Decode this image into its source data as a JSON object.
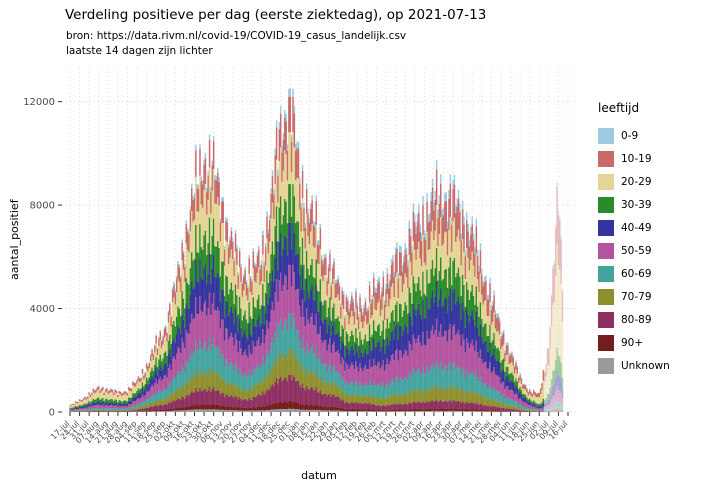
{
  "chart_data": {
    "type": "bar",
    "stacked": true,
    "title": "Verdeling positieve per dag (eerste ziektedag), op 2021-07-13",
    "subtitles": {
      "source": "bron: https://data.rivm.nl/covid-19/COVID-19_casus_landelijk.csv",
      "note": "laatste 14 dagen zijn lichter"
    },
    "xlabel": "datum",
    "ylabel": "aantal_positief",
    "ylim": [
      0,
      13300
    ],
    "yticks": [
      0,
      4000,
      8000,
      12000
    ],
    "grid": "dotted",
    "legend": {
      "title": "leeftijd",
      "position": "right"
    },
    "lighter_from_day": 347,
    "x_tick_labels": [
      "17-jul",
      "24-jul",
      "31-jul",
      "07-aug",
      "14-aug",
      "21-aug",
      "28-aug",
      "04-sep",
      "11-sep",
      "18-sep",
      "25-sep",
      "02-okt",
      "09-okt",
      "16-okt",
      "23-okt",
      "30-okt",
      "06-nov",
      "13-nov",
      "20-nov",
      "27-nov",
      "04-dec",
      "11-dec",
      "18-dec",
      "25-dec",
      "01-jan",
      "08-jan",
      "15-jan",
      "22-jan",
      "29-jan",
      "05-feb",
      "12-feb",
      "19-feb",
      "26-feb",
      "05-mrt",
      "12-mrt",
      "19-mrt",
      "26-mrt",
      "02-apr",
      "09-apr",
      "16-apr",
      "23-apr",
      "30-apr",
      "07-mei",
      "14-mei",
      "21-mei",
      "28-mei",
      "04-jun",
      "11-jun",
      "18-jun",
      "25-jun",
      "02-jul",
      "09-jul",
      "16-jul"
    ],
    "series": [
      {
        "name": "0-9",
        "color": "#9ecae1",
        "values": [
          8,
          14,
          21,
          29,
          27,
          23,
          26,
          30,
          36,
          52,
          68,
          96,
          136,
          172,
          200,
          188,
          160,
          128,
          112,
          108,
          155,
          205,
          280,
          308,
          230,
          200,
          170,
          145,
          123,
          141,
          131,
          141,
          192,
          208,
          232,
          260,
          288,
          312,
          332,
          344,
          332,
          312,
          276,
          232,
          176,
          132,
          92,
          56,
          28,
          18,
          52,
          172,
          18
        ]
      },
      {
        "name": "10-19",
        "color": "#c96a6a",
        "values": [
          30,
          54,
          84,
          114,
          108,
          90,
          102,
          132,
          180,
          260,
          340,
          480,
          680,
          860,
          1000,
          940,
          800,
          640,
          560,
          540,
          682,
          902,
          1232,
          1353,
          1012,
          880,
          748,
          638,
          539,
          550,
          513,
          550,
          672,
          728,
          812,
          910,
          1008,
          1092,
          1162,
          1204,
          1162,
          1092,
          966,
          812,
          616,
          462,
          322,
          196,
          128,
          140,
          650,
          2150,
          225
        ]
      },
      {
        "name": "20-29",
        "color": "#e4d596",
        "values": [
          75,
          135,
          210,
          285,
          270,
          225,
          255,
          264,
          324,
          468,
          612,
          864,
          1224,
          1548,
          1800,
          1692,
          1440,
          1152,
          1008,
          972,
          992,
          1312,
          1792,
          1968,
          1472,
          1280,
          1088,
          928,
          784,
          726,
          677,
          726,
          816,
          884,
          986,
          1105,
          1224,
          1326,
          1411,
          1462,
          1411,
          1326,
          1173,
          986,
          748,
          561,
          391,
          238,
          168,
          266,
          1170,
          3870,
          405
        ]
      },
      {
        "name": "30-39",
        "color": "#2a8b2a",
        "values": [
          35,
          63,
          98,
          133,
          126,
          105,
          119,
          162,
          234,
          338,
          442,
          624,
          884,
          1118,
          1300,
          1222,
          1040,
          832,
          728,
          702,
          744,
          984,
          1344,
          1476,
          1104,
          960,
          816,
          696,
          588,
          550,
          513,
          550,
          624,
          676,
          754,
          845,
          936,
          1014,
          1079,
          1118,
          1079,
          1014,
          897,
          754,
          572,
          429,
          299,
          182,
          104,
          84,
          260,
          860,
          90
        ]
      },
      {
        "name": "40-49",
        "color": "#34349e",
        "values": [
          30,
          54,
          84,
          114,
          108,
          90,
          102,
          162,
          252,
          364,
          476,
          672,
          952,
          1204,
          1400,
          1316,
          1120,
          896,
          784,
          756,
          806,
          1066,
          1456,
          1599,
          1196,
          1040,
          884,
          754,
          637,
          616,
          574,
          616,
          720,
          780,
          870,
          975,
          1080,
          1170,
          1245,
          1290,
          1245,
          1170,
          1035,
          870,
          660,
          495,
          345,
          210,
          112,
          63,
          182,
          602,
          63
        ]
      },
      {
        "name": "50-59",
        "color": "#b3549f",
        "values": [
          30,
          54,
          84,
          114,
          108,
          90,
          102,
          180,
          288,
          416,
          544,
          768,
          1088,
          1376,
          1600,
          1504,
          1280,
          1024,
          896,
          864,
          930,
          1230,
          1680,
          1845,
          1380,
          1200,
          1020,
          870,
          735,
          682,
          636,
          682,
          768,
          832,
          928,
          1040,
          1152,
          1248,
          1328,
          1376,
          1328,
          1248,
          1104,
          928,
          704,
          528,
          368,
          224,
          120,
          56,
          156,
          516,
          54
        ]
      },
      {
        "name": "60-69",
        "color": "#45a4a0",
        "values": [
          20,
          36,
          56,
          76,
          72,
          60,
          68,
          120,
          198,
          286,
          374,
          528,
          748,
          946,
          1100,
          1034,
          880,
          704,
          616,
          594,
          682,
          902,
          1232,
          1353,
          1012,
          880,
          748,
          638,
          539,
          462,
          431,
          462,
          480,
          520,
          580,
          650,
          720,
          780,
          830,
          860,
          830,
          780,
          690,
          580,
          440,
          330,
          230,
          140,
          72,
          35,
          78,
          258,
          27
        ]
      },
      {
        "name": "70-79",
        "color": "#8f8f2d",
        "values": [
          10,
          18,
          28,
          38,
          36,
          30,
          34,
          72,
          126,
          182,
          238,
          336,
          476,
          602,
          700,
          658,
          560,
          448,
          392,
          378,
          496,
          656,
          896,
          984,
          736,
          640,
          544,
          464,
          392,
          308,
          287,
          308,
          288,
          312,
          348,
          390,
          432,
          468,
          498,
          516,
          498,
          468,
          414,
          348,
          264,
          198,
          138,
          84,
          40,
          14,
          26,
          86,
          9
        ]
      },
      {
        "name": "80-89",
        "color": "#8e2f62",
        "values": [
          8,
          14,
          21,
          29,
          27,
          23,
          26,
          48,
          108,
          156,
          204,
          288,
          408,
          516,
          600,
          564,
          480,
          384,
          336,
          324,
          496,
          656,
          896,
          984,
          736,
          640,
          544,
          464,
          392,
          251,
          234,
          251,
          168,
          182,
          203,
          228,
          252,
          273,
          291,
          301,
          291,
          273,
          242,
          203,
          154,
          116,
          81,
          49,
          20,
          10,
          13,
          43,
          5
        ]
      },
      {
        "name": "90+",
        "color": "#731d1d",
        "values": [
          2,
          4,
          7,
          9,
          9,
          7,
          8,
          18,
          36,
          52,
          68,
          96,
          136,
          172,
          200,
          188,
          160,
          128,
          112,
          108,
          155,
          205,
          280,
          308,
          230,
          200,
          170,
          145,
          123,
          75,
          70,
          75,
          48,
          52,
          58,
          65,
          72,
          78,
          83,
          86,
          83,
          78,
          69,
          58,
          44,
          33,
          23,
          14,
          4,
          7,
          5,
          17,
          2
        ]
      },
      {
        "name": "Unknown",
        "color": "#9a9a9a",
        "values": [
          2,
          4,
          7,
          9,
          9,
          7,
          8,
          12,
          18,
          26,
          34,
          48,
          68,
          86,
          100,
          94,
          80,
          64,
          56,
          54,
          62,
          82,
          112,
          123,
          92,
          80,
          68,
          58,
          49,
          35,
          33,
          35,
          24,
          26,
          29,
          32,
          36,
          39,
          41,
          43,
          41,
          39,
          34,
          29,
          22,
          16,
          11,
          7,
          4,
          7,
          8,
          26,
          2
        ]
      }
    ]
  }
}
